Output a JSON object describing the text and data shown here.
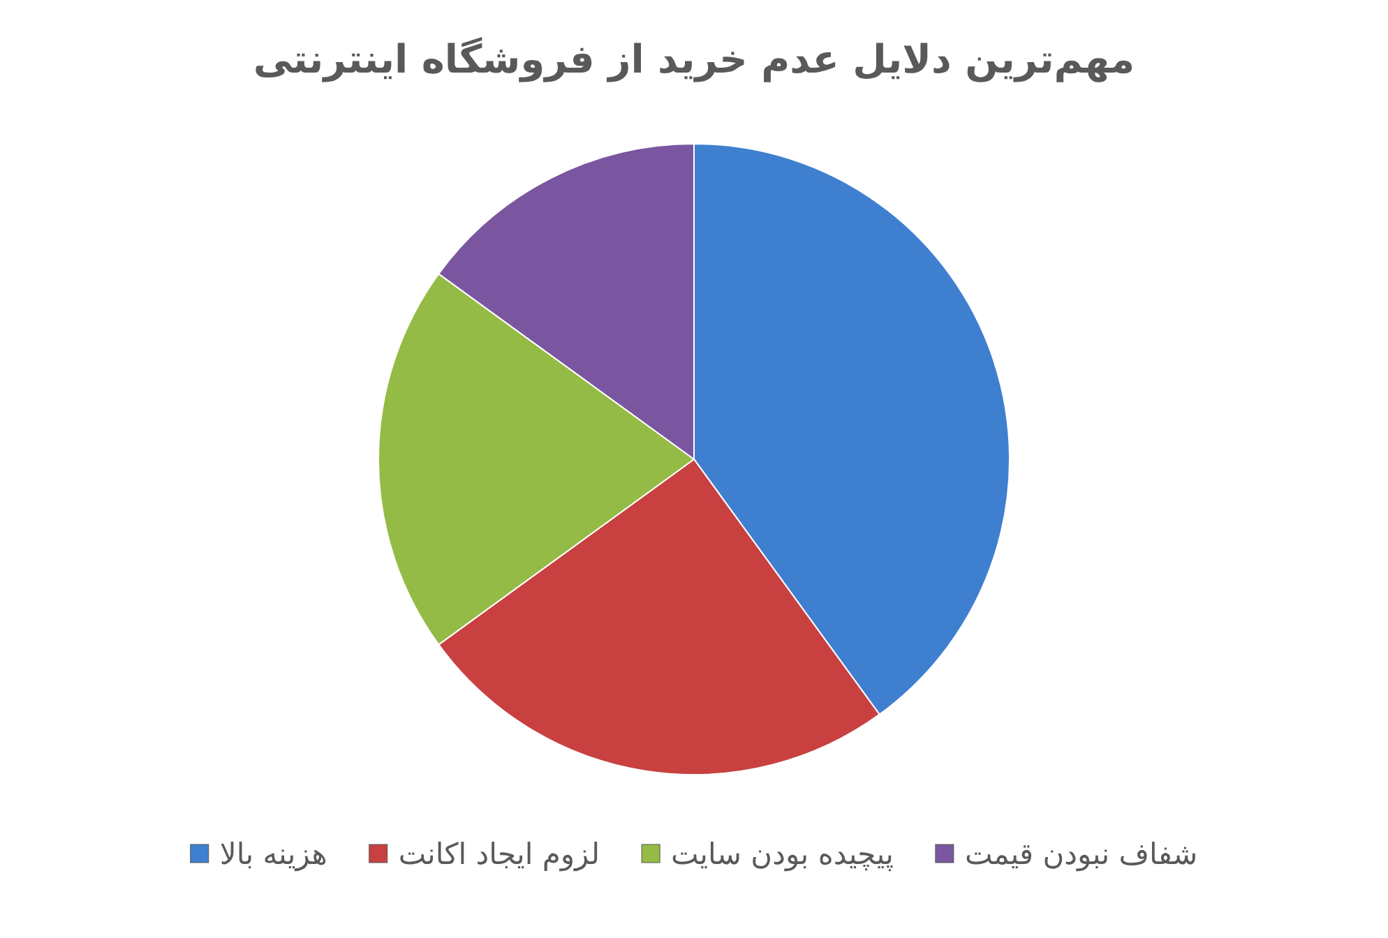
{
  "chart_data": {
    "type": "pie",
    "title": "مهم‌ترین دلایل عدم خرید از فروشگاه اینترنتی",
    "categories": [
      "هزینه بالا",
      "لزوم ایجاد اکانت",
      "پیچیده بودن سایت",
      "شفاف نبودن قیمت"
    ],
    "values": [
      40,
      25,
      20,
      15
    ],
    "colors": [
      "#3f7fd0",
      "#c84040",
      "#94bb45",
      "#7a56a0"
    ],
    "legend": "bottom"
  }
}
